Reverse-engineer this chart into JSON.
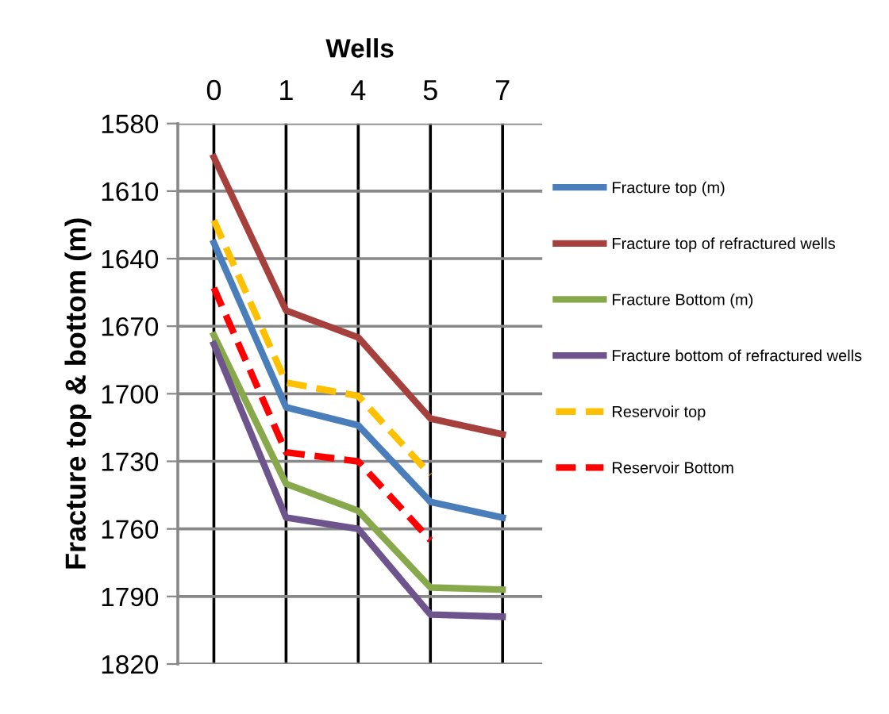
{
  "chart_data": {
    "type": "line",
    "title": "Wells",
    "ylabel": "Fracture top & bottom (m)",
    "categories": [
      "0",
      "1",
      "4",
      "5",
      "7"
    ],
    "series": [
      {
        "name": "Fracture top (m)",
        "color": "#4a7ebb",
        "values": [
          1633,
          1706,
          1714,
          1748,
          1755
        ]
      },
      {
        "name": "Fracture top of refractured wells",
        "color": "#a5403d",
        "values": [
          1595,
          1663,
          1675,
          1711,
          1718
        ]
      },
      {
        "name": "Fracture Bottom (m)",
        "color": "#87a84b",
        "values": [
          1674,
          1740,
          1752,
          1786,
          1787
        ]
      },
      {
        "name": "Fracture bottom of refractured wells",
        "color": "#6e548d",
        "values": [
          1678,
          1755,
          1760,
          1798,
          1799
        ]
      },
      {
        "name": "Reservoir top",
        "color": "#ffc000",
        "values": [
          1623,
          1695,
          1701,
          1736,
          null
        ],
        "line_style": "dashed"
      },
      {
        "name": "Reservoir Bottom",
        "color": "#ff0000",
        "values": [
          1653,
          1726,
          1730,
          1765,
          null
        ],
        "line_style": "dashed"
      }
    ],
    "ylim": [
      1820,
      1580
    ],
    "yticks": [
      1580,
      1610,
      1640,
      1670,
      1700,
      1730,
      1760,
      1790,
      1820
    ],
    "grid": true,
    "legend": "right",
    "marker": "none",
    "line_style": "solid"
  }
}
